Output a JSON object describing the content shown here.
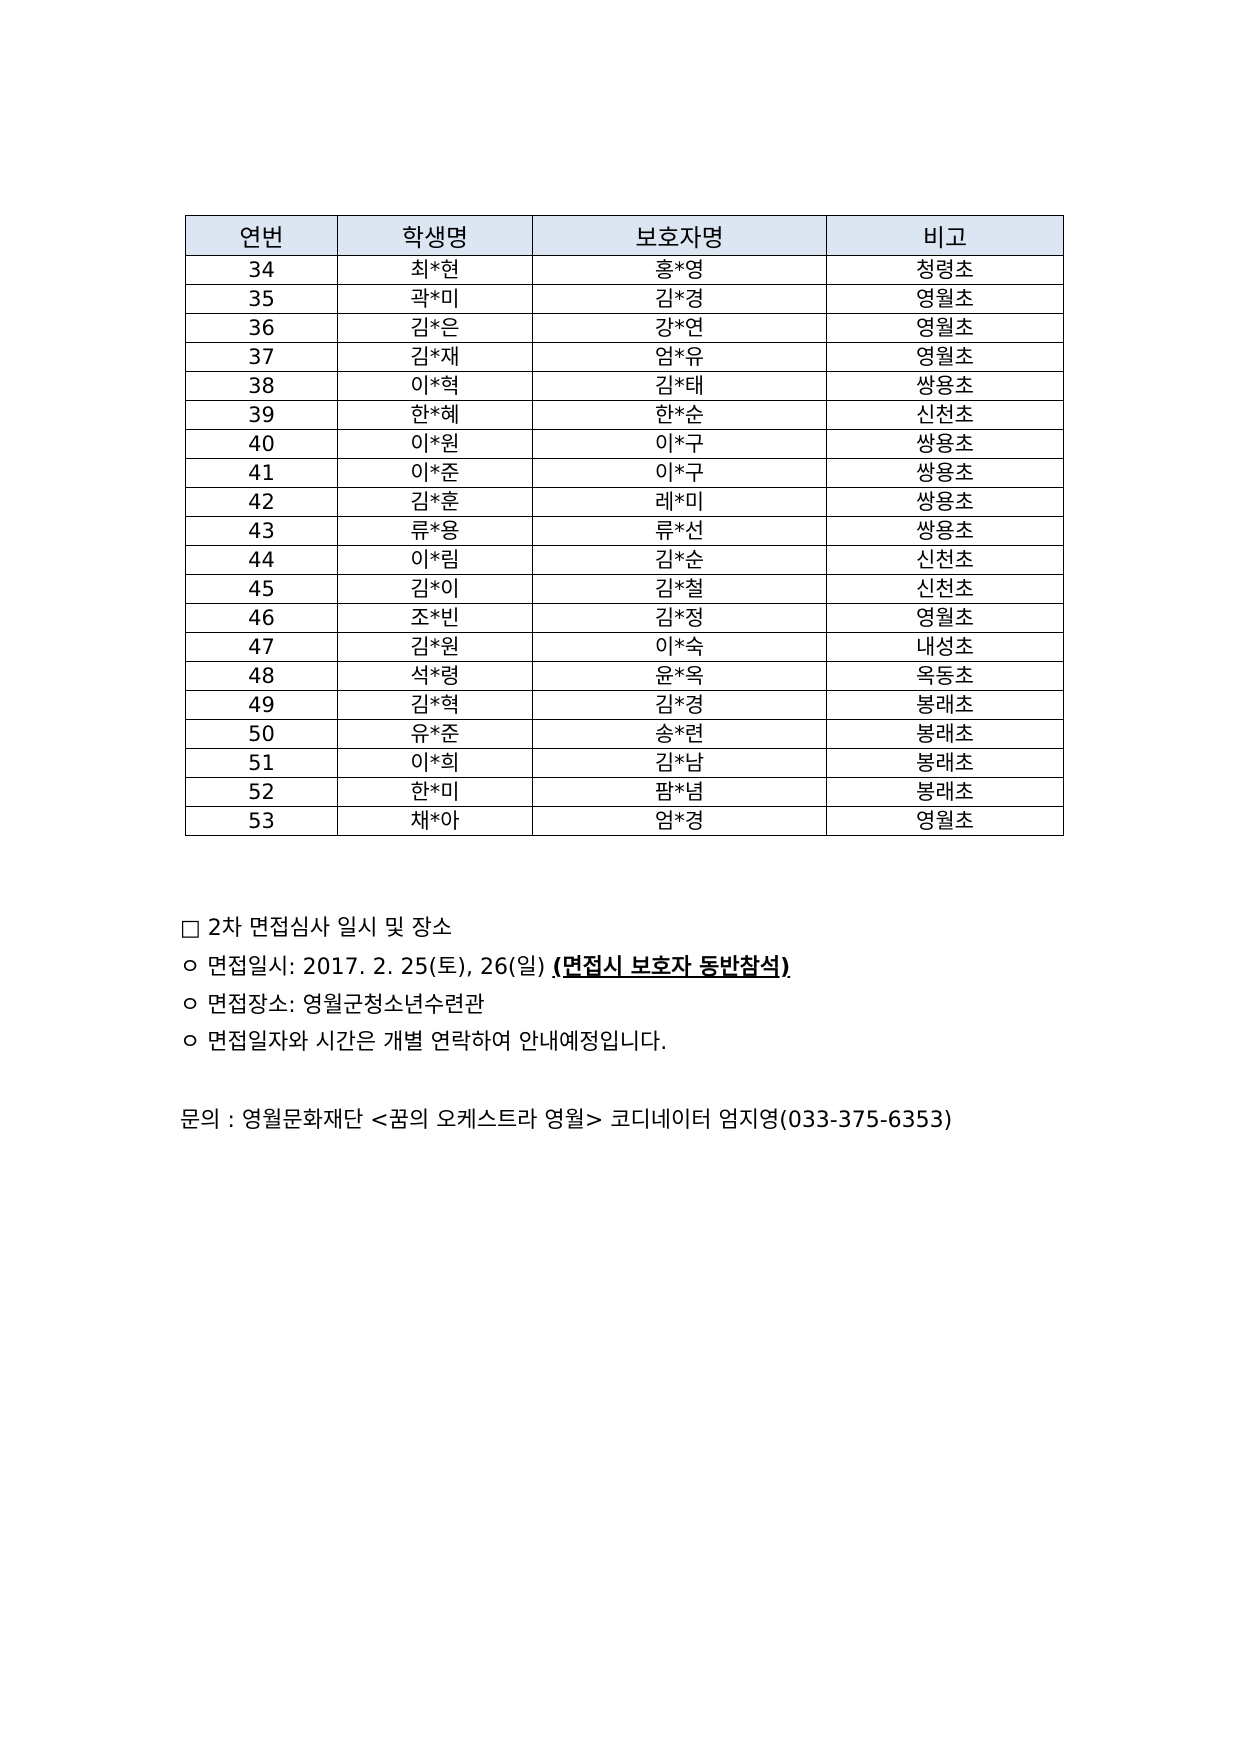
{
  "table": {
    "headers": [
      "연번",
      "학생명",
      "보호자명",
      "비고"
    ],
    "rows": [
      [
        "34",
        "최*현",
        "홍*영",
        "청령초"
      ],
      [
        "35",
        "곽*미",
        "김*경",
        "영월초"
      ],
      [
        "36",
        "김*은",
        "강*연",
        "영월초"
      ],
      [
        "37",
        "김*재",
        "엄*유",
        "영월초"
      ],
      [
        "38",
        "이*혁",
        "김*태",
        "쌍용초"
      ],
      [
        "39",
        "한*혜",
        "한*순",
        "신천초"
      ],
      [
        "40",
        "이*원",
        "이*구",
        "쌍용초"
      ],
      [
        "41",
        "이*준",
        "이*구",
        "쌍용초"
      ],
      [
        "42",
        "김*훈",
        "레*미",
        "쌍용초"
      ],
      [
        "43",
        "류*용",
        "류*선",
        "쌍용초"
      ],
      [
        "44",
        "이*림",
        "김*순",
        "신천초"
      ],
      [
        "45",
        "김*이",
        "김*철",
        "신천초"
      ],
      [
        "46",
        "조*빈",
        "김*정",
        "영월초"
      ],
      [
        "47",
        "김*원",
        "이*숙",
        "내성초"
      ],
      [
        "48",
        "석*령",
        "윤*옥",
        "옥동초"
      ],
      [
        "49",
        "김*혁",
        "김*경",
        "봉래초"
      ],
      [
        "50",
        "유*준",
        "송*련",
        "봉래초"
      ],
      [
        "51",
        "이*희",
        "김*남",
        "봉래초"
      ],
      [
        "52",
        "한*미",
        "팜*념",
        "봉래초"
      ],
      [
        "53",
        "채*아",
        "엄*경",
        "영월초"
      ]
    ]
  },
  "notice": {
    "heading": "□ 2차 면접심사 일시 및 장소",
    "date_prefix": "ㅇ 면접일시: 2017. 2. 25(토), 26(일) ",
    "date_emphasis": "(면접시 보호자 동반참석)",
    "place": "ㅇ 면접장소: 영월군청소년수련관",
    "schedule": "ㅇ 면접일자와 시간은 개별 연락하여 안내예정입니다.",
    "contact": "문의 : 영월문화재단 <꿈의 오케스트라 영월> 코디네이터 엄지영(033-375-6353)"
  },
  "colors": {
    "header_bg": "#dce6f2"
  }
}
